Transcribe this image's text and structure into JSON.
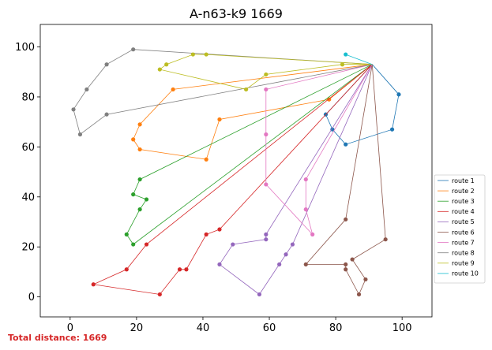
{
  "chart_data": {
    "type": "line",
    "title": "A-n63-k9 1669",
    "xlabel": "",
    "ylabel": "",
    "xlim": [
      -9,
      109
    ],
    "ylim": [
      -8,
      109
    ],
    "xticks": [
      0,
      20,
      40,
      60,
      80,
      100
    ],
    "yticks": [
      0,
      20,
      40,
      60,
      80,
      100
    ],
    "grid": false,
    "legend_position": "right",
    "depot": [
      91,
      93
    ],
    "series": [
      {
        "name": "route 1",
        "color": "#1f77b4",
        "x": [
          91,
          99,
          97,
          83,
          79,
          77,
          91
        ],
        "y": [
          93,
          81,
          67,
          61,
          67,
          73,
          93
        ]
      },
      {
        "name": "route 2",
        "color": "#ff7f0e",
        "x": [
          91,
          78,
          45,
          41,
          21,
          19,
          21,
          31,
          91
        ],
        "y": [
          93,
          79,
          71,
          55,
          59,
          63,
          69,
          83,
          93
        ]
      },
      {
        "name": "route 3",
        "color": "#2ca02c",
        "x": [
          91,
          21,
          19,
          23,
          21,
          17,
          19,
          91
        ],
        "y": [
          93,
          47,
          41,
          39,
          35,
          25,
          21,
          93
        ]
      },
      {
        "name": "route 4",
        "color": "#d62728",
        "x": [
          91,
          45,
          41,
          35,
          33,
          27,
          7,
          17,
          23,
          91
        ],
        "y": [
          93,
          27,
          25,
          11,
          11,
          1,
          5,
          11,
          21,
          93
        ]
      },
      {
        "name": "route 5",
        "color": "#9467bd",
        "x": [
          91,
          67,
          65,
          63,
          57,
          45,
          49,
          59,
          59,
          91
        ],
        "y": [
          93,
          21,
          17,
          13,
          1,
          13,
          21,
          23,
          25,
          93
        ]
      },
      {
        "name": "route 6",
        "color": "#8c564b",
        "x": [
          91,
          95,
          85,
          89,
          87,
          83,
          83,
          71,
          83,
          91
        ],
        "y": [
          93,
          23,
          15,
          7,
          1,
          11,
          13,
          13,
          31,
          93
        ]
      },
      {
        "name": "route 7",
        "color": "#e377c2",
        "x": [
          91,
          71,
          71,
          73,
          59,
          59,
          59,
          91
        ],
        "y": [
          93,
          47,
          35,
          25,
          45,
          65,
          83,
          93
        ]
      },
      {
        "name": "route 8",
        "color": "#7f7f7f",
        "x": [
          91,
          11,
          3,
          1,
          5,
          11,
          19,
          91
        ],
        "y": [
          93,
          73,
          65,
          75,
          83,
          93,
          99,
          93
        ]
      },
      {
        "name": "route 9",
        "color": "#bcbd22",
        "x": [
          91,
          82,
          59,
          53,
          27,
          29,
          37,
          41,
          91
        ],
        "y": [
          93,
          93,
          89,
          83,
          91,
          93,
          97,
          97,
          93
        ]
      },
      {
        "name": "route 10",
        "color": "#17becf",
        "x": [
          91,
          83,
          91
        ],
        "y": [
          93,
          97,
          93
        ]
      }
    ],
    "annotation": "Total distance: 1669"
  }
}
